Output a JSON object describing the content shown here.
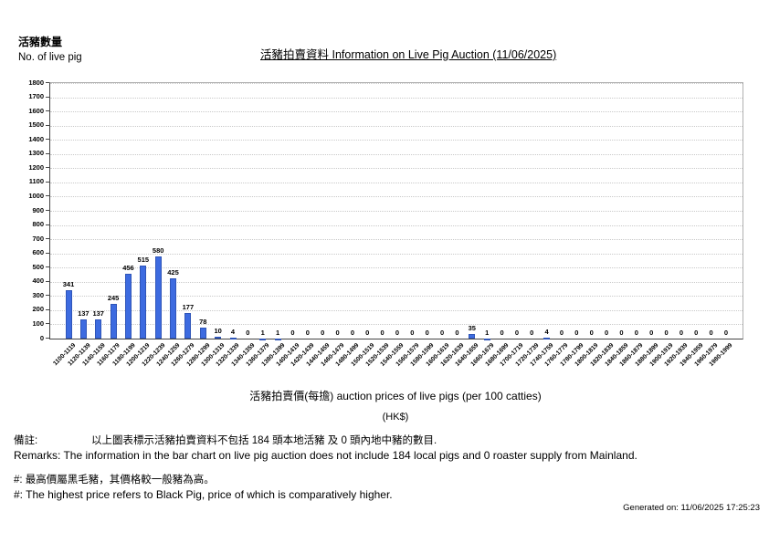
{
  "header": {
    "y_axis_label_zh": "活豬數量",
    "y_axis_label_en": "No. of live pig",
    "title": "活豬拍賣資料 Information on Live Pig Auction (11/06/2025)",
    "x_axis_title": "活豬拍賣價(每擔) auction prices of live pigs (per 100 catties)",
    "x_axis_unit": "(HK$)"
  },
  "remarks": {
    "zh_label": "備註:",
    "zh_text": "以上圖表標示活豬拍賣資料不包括 184 頭本地活豬 及 0 頭內地中豬的數目.",
    "en_text": "Remarks: The information in the bar chart on live pig auction does not include 184 local pigs and 0 roaster supply from Mainland.",
    "note_zh": "#: 最高價屬黑毛豬，其價格較一般豬為高。",
    "note_en": "#: The highest price refers to Black Pig, price of which is comparatively higher."
  },
  "footer": {
    "generated_on": "Generated on: 11/06/2025 17:25:23"
  },
  "chart_data": {
    "type": "bar",
    "title": "活豬拍賣資料 Information on Live Pig Auction (11/06/2025)",
    "xlabel": "活豬拍賣價(每擔) auction prices of live pigs (per 100 catties) (HK$)",
    "ylabel": "活豬數量 No. of live pig",
    "ylim": [
      0,
      1800
    ],
    "y_tick_step": 100,
    "grid": true,
    "legend": "none",
    "bar_color": "#3d6be0",
    "categories": [
      "1100-1119",
      "1120-1139",
      "1140-1159",
      "1160-1179",
      "1180-1199",
      "1200-1219",
      "1220-1239",
      "1240-1259",
      "1260-1279",
      "1280-1299",
      "1300-1319",
      "1320-1339",
      "1340-1359",
      "1360-1379",
      "1380-1399",
      "1400-1419",
      "1420-1439",
      "1440-1459",
      "1460-1479",
      "1480-1499",
      "1500-1519",
      "1520-1539",
      "1540-1559",
      "1560-1579",
      "1580-1599",
      "1600-1619",
      "1620-1639",
      "1640-1659",
      "1660-1679",
      "1680-1699",
      "1700-1719",
      "1720-1739",
      "1740-1759",
      "1760-1779",
      "1780-1799",
      "1800-1819",
      "1820-1839",
      "1840-1859",
      "1860-1879",
      "1880-1899",
      "1900-1919",
      "1920-1939",
      "1940-1959",
      "1960-1979",
      "1980-1999"
    ],
    "values": [
      341,
      137,
      137,
      245,
      456,
      515,
      580,
      425,
      177,
      78,
      10,
      4,
      0,
      1,
      1,
      0,
      0,
      0,
      0,
      0,
      0,
      0,
      0,
      0,
      0,
      0,
      0,
      35,
      1,
      0,
      0,
      0,
      4,
      0,
      0,
      0,
      0,
      0,
      0,
      0,
      0,
      0,
      0,
      0,
      0
    ]
  }
}
